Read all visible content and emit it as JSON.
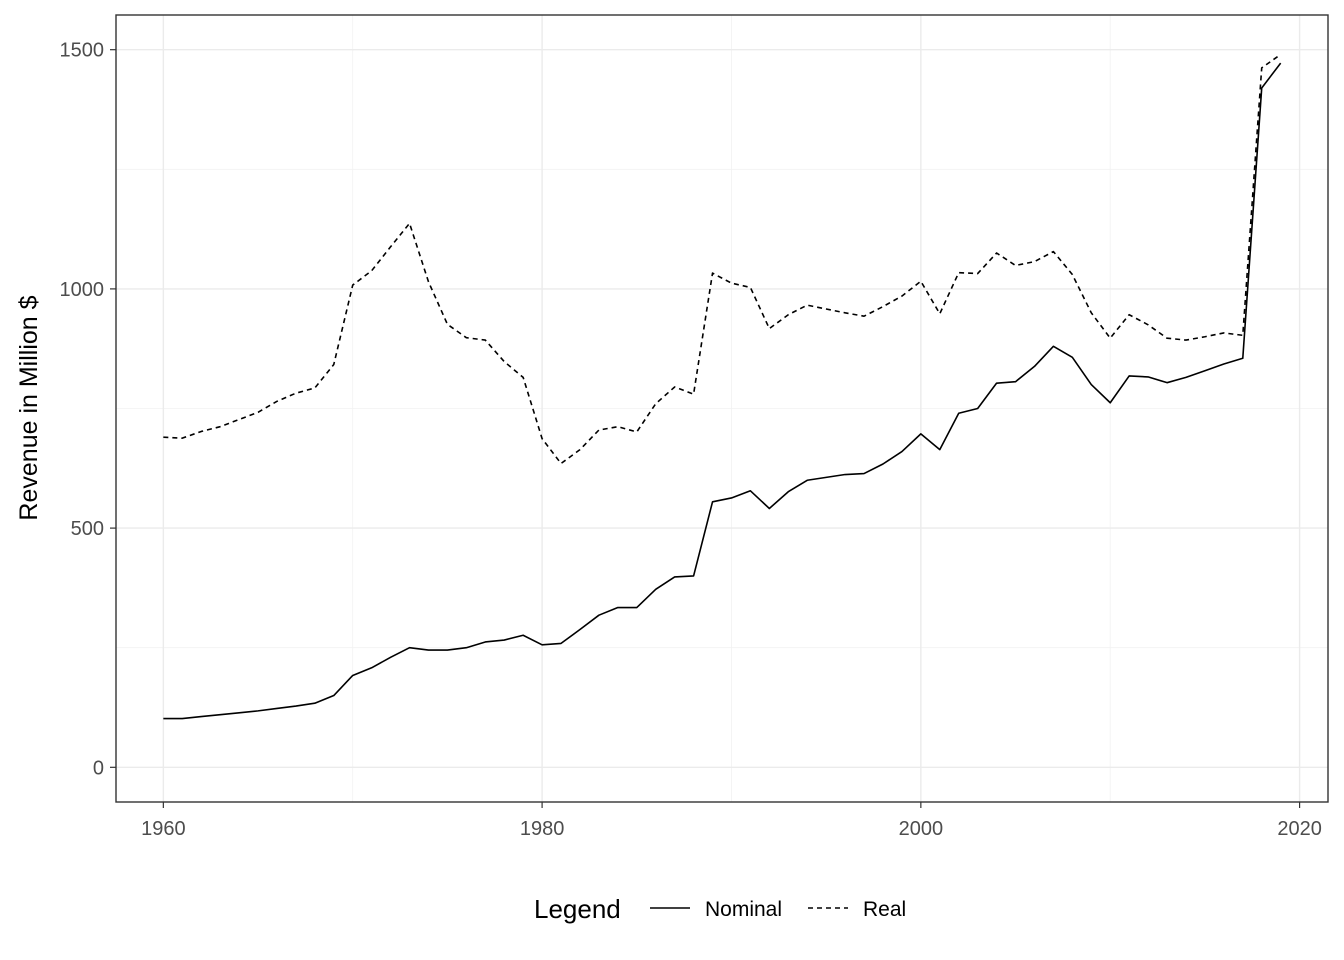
{
  "chart_data": {
    "type": "line",
    "title": "",
    "xlabel": "",
    "ylabel": "Revenue in Million $",
    "xlim": [
      1957.5,
      2021.5
    ],
    "ylim": [
      -72.5,
      1572.5
    ],
    "x_ticks": [
      1960,
      1980,
      2000,
      2020
    ],
    "y_ticks": [
      0,
      500,
      1000,
      1500
    ],
    "x_minor": [
      1970,
      1990,
      2010
    ],
    "y_minor": [
      250,
      750,
      1250
    ],
    "grid": true,
    "legend": {
      "title": "Legend",
      "position": "bottom"
    },
    "x": [
      1960,
      1961,
      1962,
      1963,
      1964,
      1965,
      1966,
      1967,
      1968,
      1969,
      1970,
      1971,
      1972,
      1973,
      1974,
      1975,
      1976,
      1977,
      1978,
      1979,
      1980,
      1981,
      1982,
      1983,
      1984,
      1985,
      1986,
      1987,
      1988,
      1989,
      1990,
      1991,
      1992,
      1993,
      1994,
      1995,
      1996,
      1997,
      1998,
      1999,
      2000,
      2001,
      2002,
      2003,
      2004,
      2005,
      2006,
      2007,
      2008,
      2009,
      2010,
      2011,
      2012,
      2013,
      2014,
      2015,
      2016,
      2017,
      2018,
      2019
    ],
    "series": [
      {
        "name": "Nominal",
        "dash": "solid",
        "values": [
          102,
          102,
          106,
          110,
          114,
          118,
          123,
          128,
          134,
          150,
          192,
          208,
          230,
          250,
          245,
          245,
          250,
          262,
          266,
          276,
          256,
          259,
          288,
          318,
          334,
          334,
          372,
          398,
          400,
          555,
          563,
          578,
          541,
          576,
          600,
          606,
          612,
          614,
          634,
          660,
          697,
          664,
          740,
          750,
          803,
          806,
          838,
          880,
          857,
          800,
          762,
          818,
          816,
          804,
          815,
          829,
          843,
          855,
          1420,
          1472
        ]
      },
      {
        "name": "Real",
        "dash": "dashed",
        "values": [
          690,
          688,
          702,
          712,
          727,
          742,
          765,
          782,
          793,
          842,
          1008,
          1038,
          1088,
          1137,
          1015,
          926,
          898,
          893,
          848,
          815,
          687,
          635,
          664,
          705,
          712,
          701,
          760,
          795,
          780,
          1033,
          1012,
          1003,
          917,
          946,
          966,
          958,
          950,
          943,
          963,
          985,
          1016,
          948,
          1034,
          1032,
          1075,
          1049,
          1057,
          1078,
          1030,
          950,
          897,
          946,
          925,
          897,
          893,
          900,
          908,
          903,
          1462,
          1490
        ]
      }
    ]
  },
  "colors": {
    "line": "#000000",
    "panel_border": "#333333",
    "grid_major": "#ebebeb",
    "grid_minor": "#f2f2f2",
    "tick_label": "#4d4d4d"
  }
}
